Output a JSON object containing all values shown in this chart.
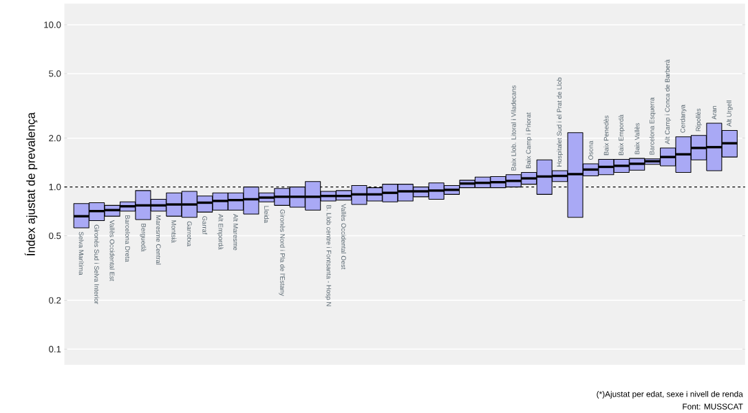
{
  "chart_data": {
    "type": "box",
    "ylabel": "Índex ajustat de prevalença",
    "categories": [
      "Selva Marítima",
      "Gironès Sud i Selva Interior",
      "Vallès Occidental Est",
      "Barcelona Dreta",
      "Berguedà",
      "Maresme Central",
      "Montsià",
      "Garrotxa",
      "Garraf",
      "Alt Empordà",
      "Alt Maresme",
      null,
      "Lleida",
      "Gironès Nord i Pla de l'Estany",
      null,
      null,
      "B. Llob centre i Fontsanta - Hosp N",
      "Vallès Occidental Oest",
      null,
      null,
      null,
      null,
      null,
      null,
      null,
      null,
      null,
      null,
      "Baix Llob. Litoral i Viladecans",
      "Baix Camp i Priorat",
      null,
      "Hospitalet Sud i el Prat de Llob",
      null,
      "Osona",
      "Baix Penedès",
      "Baix Empordà",
      "Baix Vallès",
      "Barcelona Esquerra",
      "Alt Camp i Conca de Barberà",
      "Cerdanya",
      "Ripollès",
      "Aran",
      "Alt Urgell"
    ],
    "boxes": [
      {
        "low": 0.56,
        "q1": 0.56,
        "median": 0.66,
        "q3": 0.79,
        "high": 0.79
      },
      {
        "low": 0.62,
        "q1": 0.62,
        "median": 0.71,
        "q3": 0.8,
        "high": 0.8
      },
      {
        "low": 0.66,
        "q1": 0.66,
        "median": 0.72,
        "q3": 0.77,
        "high": 0.77
      },
      {
        "low": 0.71,
        "q1": 0.71,
        "median": 0.76,
        "q3": 0.81,
        "high": 0.81
      },
      {
        "low": 0.63,
        "q1": 0.63,
        "median": 0.77,
        "q3": 0.95,
        "high": 0.95
      },
      {
        "low": 0.71,
        "q1": 0.71,
        "median": 0.77,
        "q3": 0.84,
        "high": 0.84
      },
      {
        "low": 0.66,
        "q1": 0.66,
        "median": 0.78,
        "q3": 0.92,
        "high": 0.92
      },
      {
        "low": 0.65,
        "q1": 0.65,
        "median": 0.78,
        "q3": 0.94,
        "high": 0.94
      },
      {
        "low": 0.7,
        "q1": 0.7,
        "median": 0.8,
        "q3": 0.88,
        "high": 0.88
      },
      {
        "low": 0.72,
        "q1": 0.72,
        "median": 0.82,
        "q3": 0.92,
        "high": 0.92
      },
      {
        "low": 0.72,
        "q1": 0.72,
        "median": 0.83,
        "q3": 0.92,
        "high": 0.92
      },
      {
        "low": 0.68,
        "q1": 0.68,
        "median": 0.84,
        "q3": 1.0,
        "high": 1.0
      },
      {
        "low": 0.81,
        "q1": 0.81,
        "median": 0.86,
        "q3": 0.92,
        "high": 0.92
      },
      {
        "low": 0.77,
        "q1": 0.77,
        "median": 0.87,
        "q3": 0.98,
        "high": 0.98
      },
      {
        "low": 0.75,
        "q1": 0.75,
        "median": 0.87,
        "q3": 1.0,
        "high": 1.0
      },
      {
        "low": 0.72,
        "q1": 0.72,
        "median": 0.87,
        "q3": 1.08,
        "high": 1.08
      },
      {
        "low": 0.82,
        "q1": 0.82,
        "median": 0.88,
        "q3": 0.94,
        "high": 0.94
      },
      {
        "low": 0.83,
        "q1": 0.83,
        "median": 0.88,
        "q3": 0.95,
        "high": 0.95
      },
      {
        "low": 0.78,
        "q1": 0.78,
        "median": 0.9,
        "q3": 1.02,
        "high": 1.02
      },
      {
        "low": 0.82,
        "q1": 0.82,
        "median": 0.9,
        "q3": 0.99,
        "high": 0.99
      },
      {
        "low": 0.81,
        "q1": 0.81,
        "median": 0.92,
        "q3": 1.04,
        "high": 1.04
      },
      {
        "low": 0.82,
        "q1": 0.82,
        "median": 0.94,
        "q3": 1.04,
        "high": 1.04
      },
      {
        "low": 0.87,
        "q1": 0.87,
        "median": 0.94,
        "q3": 1.0,
        "high": 1.0
      },
      {
        "low": 0.84,
        "q1": 0.84,
        "median": 0.95,
        "q3": 1.06,
        "high": 1.06
      },
      {
        "low": 0.9,
        "q1": 0.9,
        "median": 0.96,
        "q3": 1.02,
        "high": 1.02
      },
      {
        "low": 0.99,
        "q1": 0.99,
        "median": 1.05,
        "q3": 1.1,
        "high": 1.1
      },
      {
        "low": 0.99,
        "q1": 0.99,
        "median": 1.06,
        "q3": 1.15,
        "high": 1.15
      },
      {
        "low": 0.99,
        "q1": 0.99,
        "median": 1.07,
        "q3": 1.16,
        "high": 1.16
      },
      {
        "low": 1.0,
        "q1": 1.0,
        "median": 1.09,
        "q3": 1.19,
        "high": 1.19
      },
      {
        "low": 1.04,
        "q1": 1.04,
        "median": 1.13,
        "q3": 1.23,
        "high": 1.23
      },
      {
        "low": 0.9,
        "q1": 0.9,
        "median": 1.16,
        "q3": 1.47,
        "high": 1.47
      },
      {
        "low": 1.08,
        "q1": 1.08,
        "median": 1.17,
        "q3": 1.26,
        "high": 1.26
      },
      {
        "low": 0.65,
        "q1": 0.65,
        "median": 1.2,
        "q3": 2.16,
        "high": 2.16
      },
      {
        "low": 1.17,
        "q1": 1.17,
        "median": 1.28,
        "q3": 1.39,
        "high": 1.39
      },
      {
        "low": 1.19,
        "q1": 1.19,
        "median": 1.33,
        "q3": 1.48,
        "high": 1.48
      },
      {
        "low": 1.23,
        "q1": 1.23,
        "median": 1.35,
        "q3": 1.48,
        "high": 1.48
      },
      {
        "low": 1.27,
        "q1": 1.27,
        "median": 1.39,
        "q3": 1.5,
        "high": 1.5
      },
      {
        "low": 1.38,
        "q1": 1.38,
        "median": 1.44,
        "q3": 1.49,
        "high": 1.49
      },
      {
        "low": 1.35,
        "q1": 1.35,
        "median": 1.53,
        "q3": 1.74,
        "high": 1.74
      },
      {
        "low": 1.23,
        "q1": 1.23,
        "median": 1.59,
        "q3": 2.04,
        "high": 2.04
      },
      {
        "low": 1.47,
        "q1": 1.47,
        "median": 1.74,
        "q3": 2.08,
        "high": 2.08
      },
      {
        "low": 1.26,
        "q1": 1.26,
        "median": 1.76,
        "q3": 2.47,
        "high": 2.47
      },
      {
        "low": 1.53,
        "q1": 1.53,
        "median": 1.86,
        "q3": 2.23,
        "high": 2.23
      }
    ],
    "color": "#a9a9f5",
    "log": "y",
    "ylim": [
      0.08,
      13.5
    ],
    "yticks": [
      0.1,
      0.2,
      0.5,
      {
        "value": 1,
        "label": "1.0"
      },
      {
        "value": 2,
        "label": "2.0"
      },
      {
        "value": 5,
        "label": "5.0"
      },
      {
        "value": 10,
        "label": "10.0"
      }
    ],
    "grid": "y",
    "tick_labels": "y",
    "ref_lines": [
      {
        "axis": "y",
        "value": 1,
        "line_style": "dashed",
        "color": "#000000"
      }
    ],
    "annotations": [
      "(*)Ajustat per edat, sexe i nivell de renda",
      "Font: MUSSCAT"
    ]
  }
}
